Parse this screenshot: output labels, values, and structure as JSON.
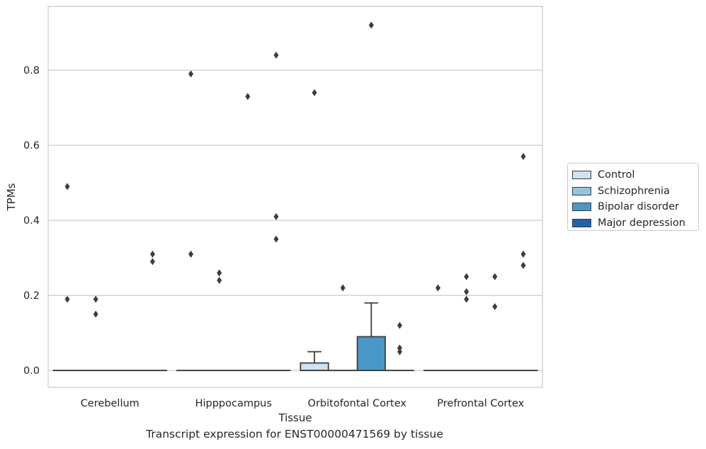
{
  "chart_data": {
    "type": "box",
    "xlabel": "Tissue",
    "ylabel": "TPMs",
    "caption": "Transcript expression for ENST00000471569 by tissue",
    "categories": [
      "Cerebellum",
      "Hipppocampus",
      "Orbitofontal Cortex",
      "Prefrontal Cortex"
    ],
    "ylim": [
      -0.045,
      0.97
    ],
    "yticks": [
      "0.0",
      "0.2",
      "0.4",
      "0.6",
      "0.8"
    ],
    "grid": true,
    "legend_position": "right",
    "series": [
      {
        "name": "Control",
        "color": "#cfe1f2",
        "boxes": [
          {
            "q1": 0,
            "median": 0,
            "q3": 0,
            "lower": 0,
            "upper": 0,
            "outliers": [
              0.49,
              0.19
            ]
          },
          {
            "q1": 0,
            "median": 0,
            "q3": 0,
            "lower": 0,
            "upper": 0,
            "outliers": [
              0.79,
              0.31
            ]
          },
          {
            "q1": 0,
            "median": 0,
            "q3": 0.02,
            "lower": 0,
            "upper": 0.05,
            "outliers": [
              0.74
            ]
          },
          {
            "q1": 0,
            "median": 0,
            "q3": 0,
            "lower": 0,
            "upper": 0,
            "outliers": [
              0.22
            ]
          }
        ]
      },
      {
        "name": "Schizophrenia",
        "color": "#93c4de",
        "boxes": [
          {
            "q1": 0,
            "median": 0,
            "q3": 0,
            "lower": 0,
            "upper": 0,
            "outliers": [
              0.19,
              0.15
            ]
          },
          {
            "q1": 0,
            "median": 0,
            "q3": 0,
            "lower": 0,
            "upper": 0,
            "outliers": [
              0.26,
              0.24
            ]
          },
          {
            "q1": 0,
            "median": 0,
            "q3": 0,
            "lower": 0,
            "upper": 0,
            "outliers": [
              0.22
            ]
          },
          {
            "q1": 0,
            "median": 0,
            "q3": 0,
            "lower": 0,
            "upper": 0,
            "outliers": [
              0.25,
              0.21,
              0.19
            ]
          }
        ]
      },
      {
        "name": "Bipolar disorder",
        "color": "#4a98c9",
        "boxes": [
          {
            "q1": 0,
            "median": 0,
            "q3": 0,
            "lower": 0,
            "upper": 0,
            "outliers": []
          },
          {
            "q1": 0,
            "median": 0,
            "q3": 0,
            "lower": 0,
            "upper": 0,
            "outliers": [
              0.73
            ]
          },
          {
            "q1": 0,
            "median": 0,
            "q3": 0.09,
            "lower": 0,
            "upper": 0.18,
            "outliers": [
              0.92
            ]
          },
          {
            "q1": 0,
            "median": 0,
            "q3": 0,
            "lower": 0,
            "upper": 0,
            "outliers": [
              0.25,
              0.17
            ]
          }
        ]
      },
      {
        "name": "Major depression",
        "color": "#2163aa",
        "boxes": [
          {
            "q1": 0,
            "median": 0,
            "q3": 0,
            "lower": 0,
            "upper": 0,
            "outliers": [
              0.31,
              0.29
            ]
          },
          {
            "q1": 0,
            "median": 0,
            "q3": 0,
            "lower": 0,
            "upper": 0,
            "outliers": [
              0.84,
              0.41,
              0.35
            ]
          },
          {
            "q1": 0,
            "median": 0,
            "q3": 0,
            "lower": 0,
            "upper": 0,
            "outliers": [
              0.12,
              0.06,
              0.05
            ]
          },
          {
            "q1": 0,
            "median": 0,
            "q3": 0,
            "lower": 0,
            "upper": 0,
            "outliers": [
              0.57,
              0.31,
              0.28
            ]
          }
        ]
      }
    ]
  }
}
